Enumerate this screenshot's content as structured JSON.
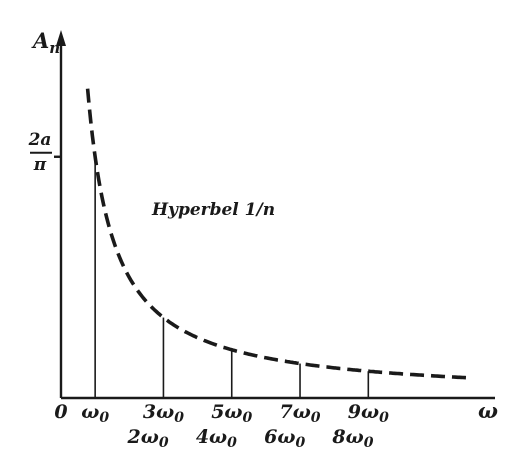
{
  "chart_data": {
    "type": "line",
    "title": "",
    "xlabel": "ω",
    "ylabel": "A",
    "ylabel_subscript": "n",
    "origin_label": "0",
    "y_tick": {
      "numerator": "2a",
      "denominator": "π",
      "value": 0.6366
    },
    "x_ticks_odd": [
      {
        "coef": "",
        "sub": "0",
        "n": 1
      },
      {
        "coef": "3",
        "sub": "0",
        "n": 3
      },
      {
        "coef": "5",
        "sub": "0",
        "n": 5
      },
      {
        "coef": "7",
        "sub": "0",
        "n": 7
      },
      {
        "coef": "9",
        "sub": "0",
        "n": 9
      }
    ],
    "x_ticks_even": [
      {
        "coef": "2",
        "sub": "0",
        "n": 2
      },
      {
        "coef": "4",
        "sub": "0",
        "n": 4
      },
      {
        "coef": "6",
        "sub": "0",
        "n": 6
      },
      {
        "coef": "8",
        "sub": "0",
        "n": 8
      }
    ],
    "spectral_lines": [
      {
        "n": 1,
        "value": 0.6366
      },
      {
        "n": 3,
        "value": 0.2122
      },
      {
        "n": 5,
        "value": 0.1273
      },
      {
        "n": 7,
        "value": 0.0909
      },
      {
        "n": 9,
        "value": 0.0707
      }
    ],
    "curve_label": "Hyperbel 1/n",
    "curve": {
      "formula": "0.6366 / n",
      "n_start": 0.78,
      "n_end": 12.0
    },
    "xlim": [
      0,
      12.3
    ],
    "ylim": [
      0,
      0.95
    ]
  }
}
